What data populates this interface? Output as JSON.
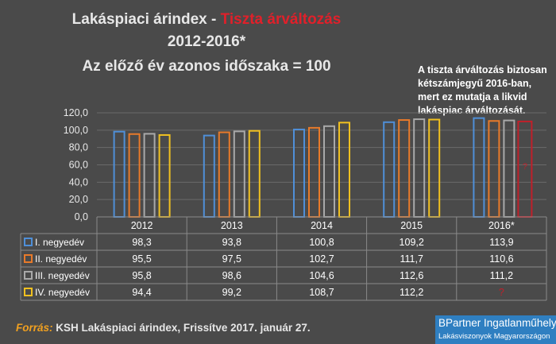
{
  "header": {
    "title_prefix": "Lakáspiaci árindex - ",
    "title_red": "Tiszta árváltozás",
    "title_years": "2012-2016*",
    "subtitle": "Az előző év azonos időszaka = 100"
  },
  "note": "A tiszta árváltozás biztosan kétszámjegyű 2016-ban, mert ez mutatja a likvid lakáspiac árváltozását.",
  "source": {
    "label": "Forrás:",
    "text": " KSH Lakáspiaci árindex, Frissítve 2017. január 27."
  },
  "logo": {
    "line1": "BPartner Ingatlanműhely",
    "line2": "Lakásviszonyok Magyarországon"
  },
  "colors": {
    "q1": "#4f8fd8",
    "q2": "#e87a2a",
    "q3": "#a9a9a9",
    "q4": "#f0c020",
    "unknown": "#c0202a",
    "background": "#4a4a4a"
  },
  "chart_data": {
    "type": "bar",
    "categories": [
      "2012",
      "2013",
      "2014",
      "2015",
      "2016*"
    ],
    "series": [
      {
        "name": "I. negyedév",
        "values": [
          98.3,
          93.8,
          100.8,
          109.2,
          113.9
        ],
        "labels": [
          "98,3",
          "93,8",
          "100,8",
          "109,2",
          "113,9"
        ]
      },
      {
        "name": "II. negyedév",
        "values": [
          95.5,
          97.5,
          102.7,
          111.7,
          110.6
        ],
        "labels": [
          "95,5",
          "97,5",
          "102,7",
          "111,7",
          "110,6"
        ]
      },
      {
        "name": "III. negyedév",
        "values": [
          95.8,
          98.6,
          104.6,
          112.6,
          111.2
        ],
        "labels": [
          "95,8",
          "98,6",
          "104,6",
          "112,6",
          "111,2"
        ]
      },
      {
        "name": "IV. negyedév",
        "values": [
          94.4,
          99.2,
          108.7,
          112.2,
          null
        ],
        "labels": [
          "94,4",
          "99,2",
          "108,7",
          "112,2",
          "?"
        ]
      }
    ],
    "unknown_mark": "?",
    "ylim": [
      0,
      120
    ],
    "yticks": [
      0,
      20,
      40,
      60,
      80,
      100,
      120
    ],
    "ytick_labels": [
      "0,0",
      "20,0",
      "40,0",
      "60,0",
      "80,0",
      "100,0",
      "120,0"
    ],
    "grid": true,
    "legend_placement": "data table below chart"
  }
}
